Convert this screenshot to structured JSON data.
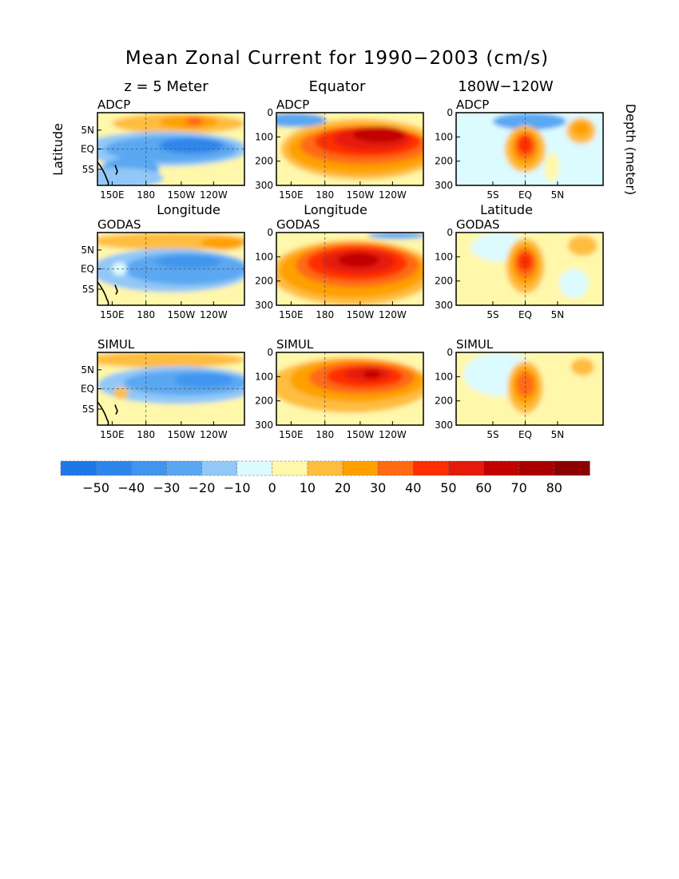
{
  "figure": {
    "title": "Mean Zonal Current for 1990−2003 (cm/s)",
    "column_titles": [
      "z = 5 Meter",
      "Equator",
      "180W−120W"
    ],
    "colorbar": {
      "ticks": [
        "−50",
        "−40",
        "−30",
        "−20",
        "−10",
        "0",
        "10",
        "20",
        "30",
        "40",
        "50",
        "60",
        "70",
        "80"
      ],
      "colors": [
        "#1f78e8",
        "#2e86ec",
        "#4195ee",
        "#5aa7f2",
        "#92c8f7",
        "#dcfbff",
        "#fff7aa",
        "#ffbd40",
        "#ffa000",
        "#ff6a12",
        "#ff2e00",
        "#e51a0a",
        "#c20000",
        "#a80000",
        "#8c0000"
      ]
    }
  },
  "chart_data": [
    {
      "type": "heatmap",
      "panel": "ADCP",
      "column": "z = 5 Meter",
      "xlabel": "Longitude",
      "ylabel": "Latitude",
      "xticks": [
        "150E",
        "180",
        "150W",
        "120W"
      ],
      "yticks": [
        "5N",
        "EQ",
        "5S"
      ],
      "features": [
        {
          "value": 15,
          "where": "near 5N, 170E to 110W"
        },
        {
          "value": 25,
          "where": "near 5N, 125W"
        },
        {
          "value": -25,
          "where": "2N to 2S, 150E to 105W"
        },
        {
          "value": -45,
          "where": "near 1N, 140W to 110W"
        },
        {
          "value": -25,
          "where": "5S to 8S, 150E to 170W"
        }
      ]
    },
    {
      "type": "heatmap",
      "panel": "ADCP",
      "column": "Equator",
      "xlabel": "Longitude",
      "ylabel": "",
      "xticks": [
        "150E",
        "180",
        "150W",
        "120W"
      ],
      "yticks": [
        "0",
        "100",
        "200",
        "300"
      ],
      "features": [
        {
          "value": -20,
          "where": "0-40 m, west of 180"
        },
        {
          "value": 75,
          "where": "core 150 m at 150W rising to 80 m at 110W"
        },
        {
          "value": 10,
          "where": "below 250 m"
        }
      ]
    },
    {
      "type": "heatmap",
      "panel": "ADCP",
      "column": "180W−120W",
      "xlabel": "Latitude",
      "ylabel": "Depth (meter)",
      "xticks": [
        "5S",
        "EQ",
        "5N"
      ],
      "yticks": [
        "0",
        "100",
        "200",
        "300"
      ],
      "features": [
        {
          "value": 65,
          "where": "EQ, 100-200 m"
        },
        {
          "value": 35,
          "where": "near 6N, 60 m"
        },
        {
          "value": -20,
          "where": "surface 2N to 5N"
        }
      ]
    },
    {
      "type": "heatmap",
      "panel": "GODAS",
      "column": "z = 5 Meter",
      "xlabel": "",
      "ylabel": "",
      "xticks": [
        "150E",
        "180",
        "150W",
        "120W"
      ],
      "yticks": [
        "5N",
        "EQ",
        "5S"
      ],
      "features": [
        {
          "value": 15,
          "where": "near 5N, 150E to 110W"
        },
        {
          "value": -30,
          "where": "3N to 5S, 160E to 105W"
        },
        {
          "value": -15,
          "where": "near EQ, 165E"
        }
      ]
    },
    {
      "type": "heatmap",
      "panel": "GODAS",
      "column": "Equator",
      "xlabel": "",
      "ylabel": "",
      "xticks": [
        "150E",
        "180",
        "150W",
        "120W"
      ],
      "yticks": [
        "0",
        "100",
        "200",
        "300"
      ],
      "features": [
        {
          "value": 75,
          "where": "core 140 m at 150W"
        },
        {
          "value": 20,
          "where": "below 250 m, 150E"
        },
        {
          "value": -20,
          "where": "surface east of 140W"
        }
      ]
    },
    {
      "type": "heatmap",
      "panel": "GODAS",
      "column": "180W−120W",
      "xlabel": "",
      "ylabel": "",
      "xticks": [
        "5S",
        "EQ",
        "5N"
      ],
      "yticks": [
        "0",
        "100",
        "200",
        "300"
      ],
      "features": [
        {
          "value": 60,
          "where": "EQ, 100-180 m"
        },
        {
          "value": 20,
          "where": "near 6N, 40 m"
        },
        {
          "value": -15,
          "where": "surface 4S to 2N"
        }
      ]
    },
    {
      "type": "heatmap",
      "panel": "SIMUL",
      "column": "z = 5 Meter",
      "xlabel": "",
      "ylabel": "",
      "xticks": [
        "150E",
        "180",
        "150W",
        "120W"
      ],
      "yticks": [
        "5N",
        "EQ",
        "5S"
      ],
      "features": [
        {
          "value": 15,
          "where": "near 5N, 150E to 110W"
        },
        {
          "value": -40,
          "where": "0 to 3N, 160W to 110W"
        },
        {
          "value": 20,
          "where": "near EQ, 147E"
        }
      ]
    },
    {
      "type": "heatmap",
      "panel": "SIMUL",
      "column": "Equator",
      "xlabel": "",
      "ylabel": "",
      "xticks": [
        "150E",
        "180",
        "150W",
        "120W"
      ],
      "yticks": [
        "0",
        "100",
        "200",
        "300"
      ],
      "features": [
        {
          "value": 65,
          "where": "core 120 m at 150W rising to 100 m at 120W"
        },
        {
          "value": 20,
          "where": "150E to 180 below 100 m"
        }
      ]
    },
    {
      "type": "heatmap",
      "panel": "SIMUL",
      "column": "180W−120W",
      "xlabel": "",
      "ylabel": "",
      "xticks": [
        "5S",
        "EQ",
        "5N"
      ],
      "yticks": [
        "0",
        "100",
        "200",
        "300"
      ],
      "features": [
        {
          "value": 55,
          "where": "EQ, 100-200 m"
        },
        {
          "value": 25,
          "where": "near 6N, 50 m"
        },
        {
          "value": -15,
          "where": "surface 4S to 2N"
        }
      ]
    }
  ]
}
